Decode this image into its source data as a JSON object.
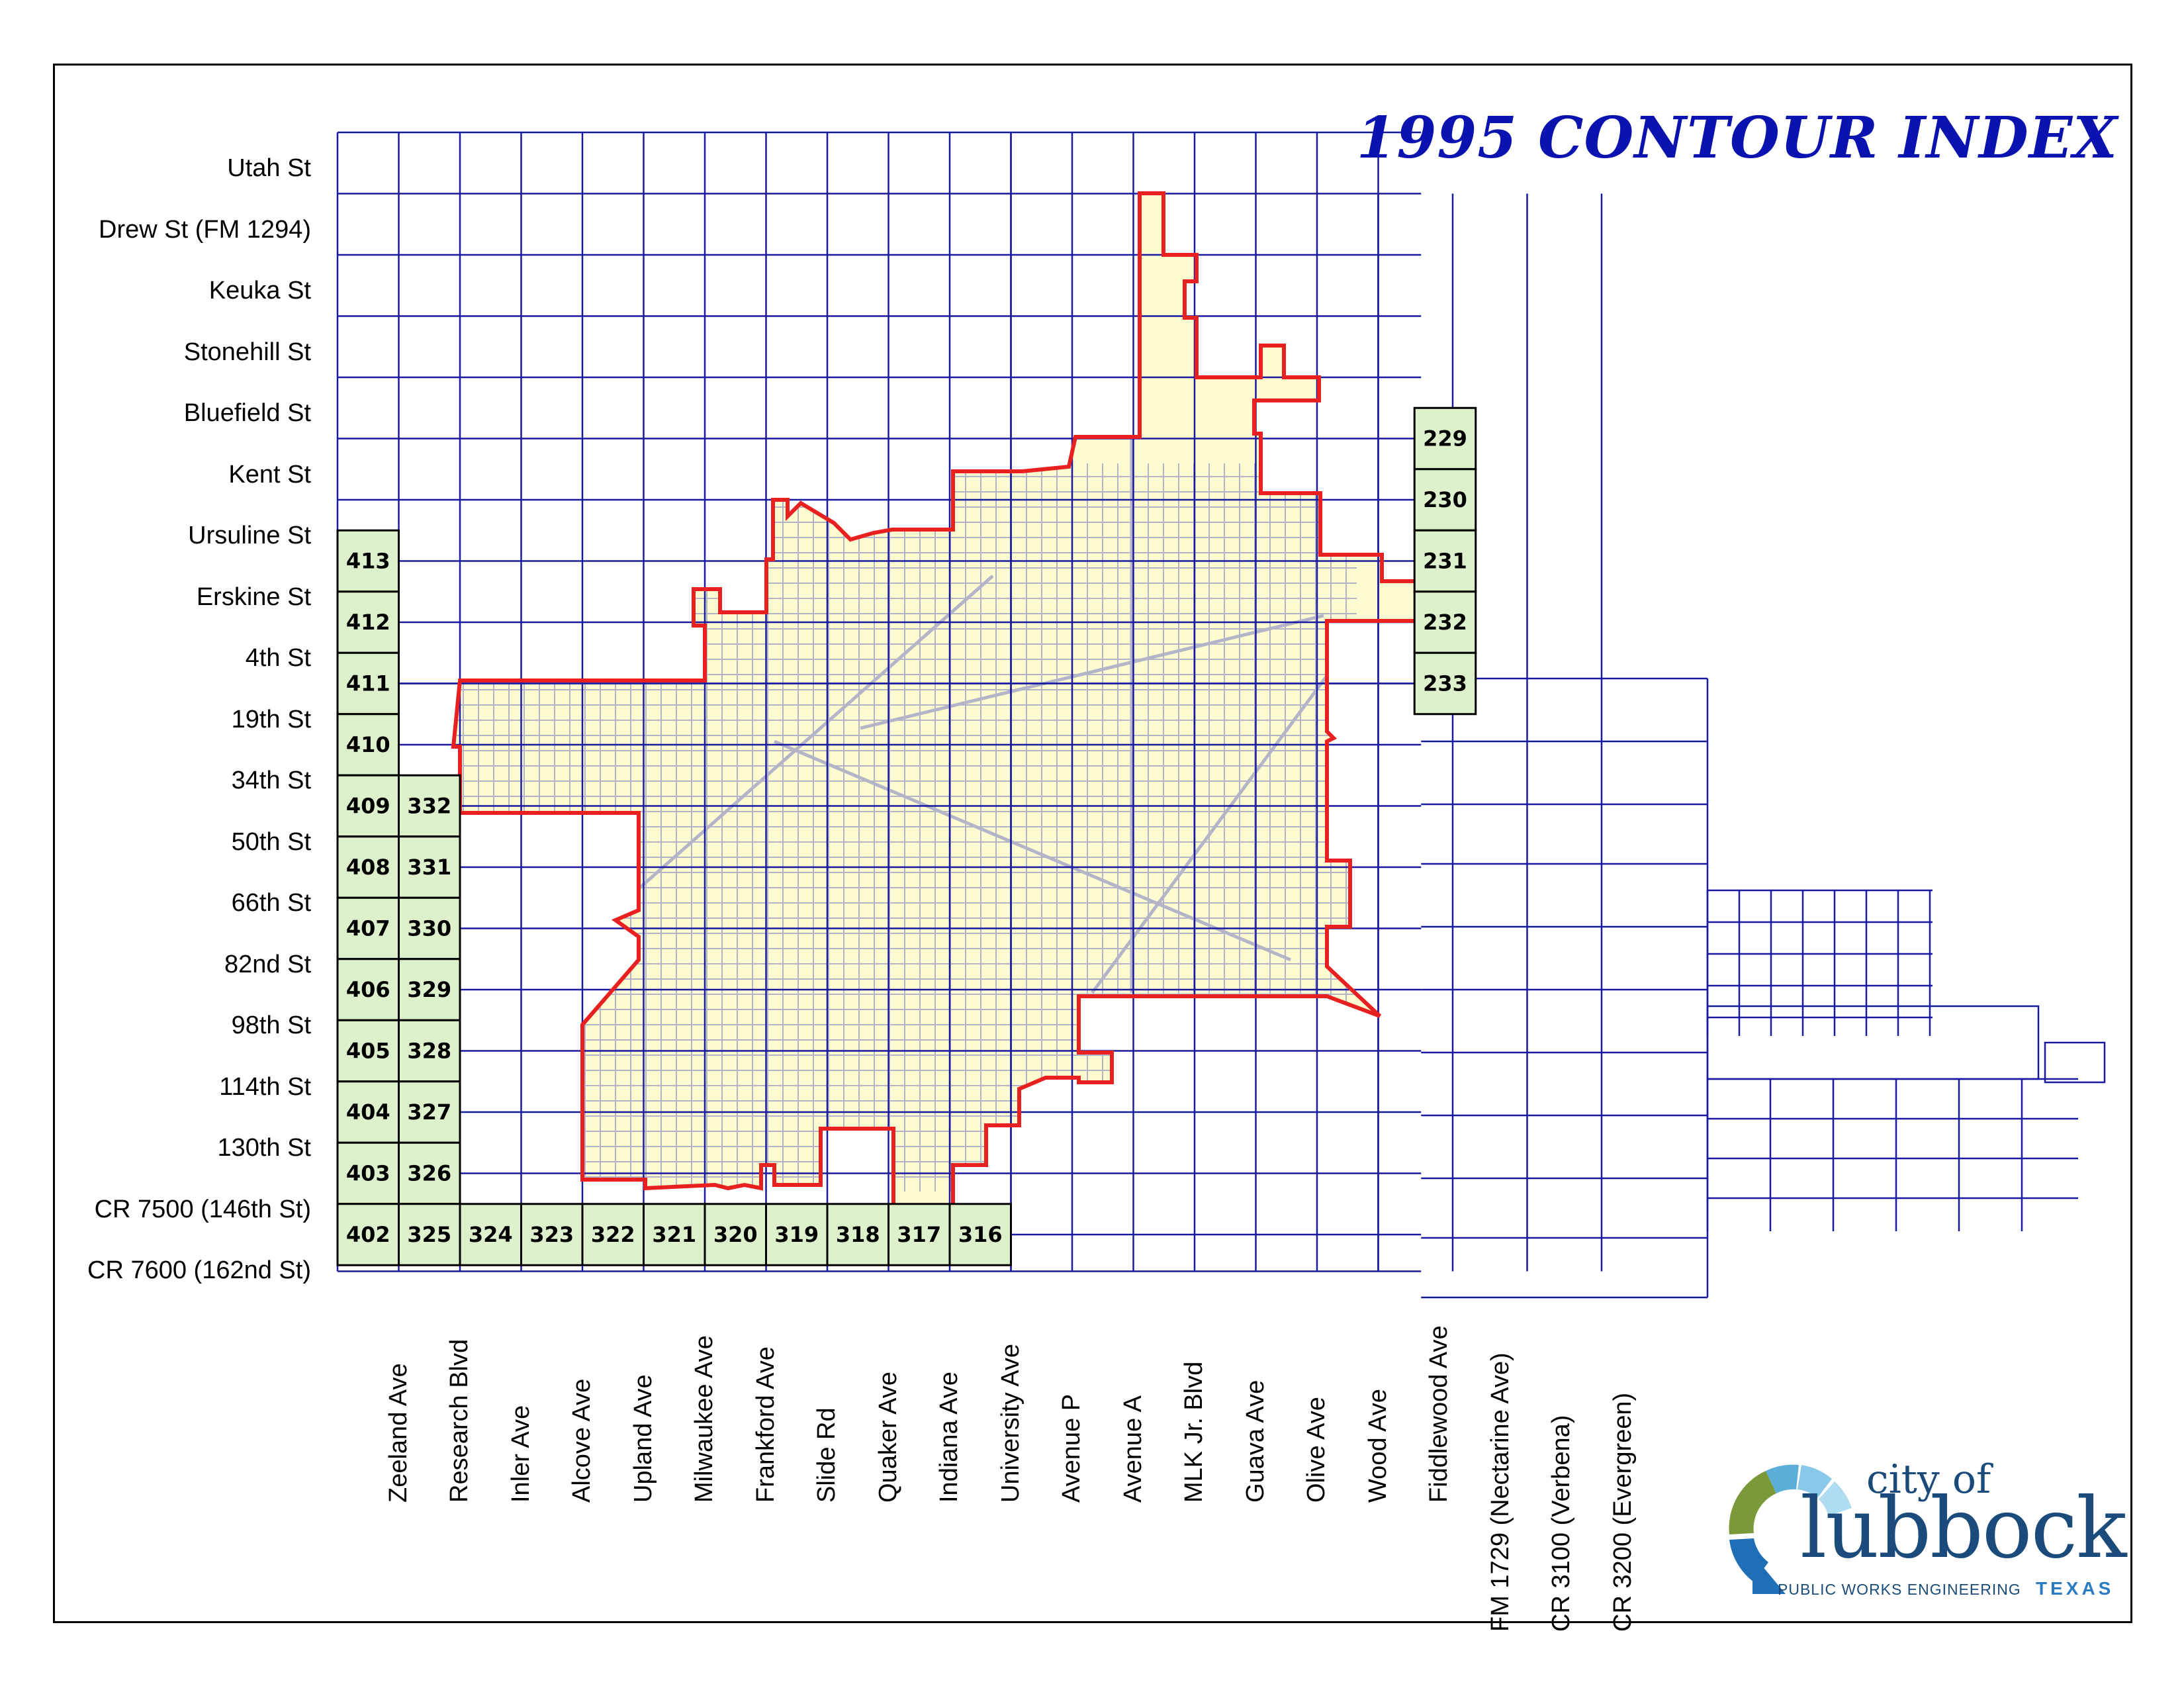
{
  "title": "1995 CONTOUR INDEX",
  "colors": {
    "grid": "#1a1aa0",
    "city_limit": "#e82020",
    "city_fill": "#fdfbd0",
    "index_tile": "#ddf0cc",
    "streets": "#b4b4c8",
    "title": "#0a12b0"
  },
  "streets_ns": [
    "Utah St",
    "Drew St (FM 1294)",
    "Keuka St",
    "Stonehill St",
    "Bluefield St",
    "Kent St",
    "Ursuline St",
    "Erskine St",
    "4th St",
    "19th St",
    "34th St",
    "50th St",
    "66th St",
    "82nd St",
    "98th St",
    "114th St",
    "130th St",
    "CR 7500 (146th St)",
    "CR 7600 (162nd St)"
  ],
  "avenues": [
    "Zeeland Ave",
    "Research Blvd",
    "Inler Ave",
    "Alcove Ave",
    "Upland Ave",
    "Milwaukee Ave",
    "Frankford Ave",
    "Slide Rd",
    "Quaker Ave",
    "Indiana Ave",
    "University Ave",
    "Avenue P",
    "Avenue A",
    "MLK Jr. Blvd",
    "Guava Ave",
    "Olive Ave",
    "Wood Ave",
    "Fiddlewood Ave",
    "FM 1729 (Nectarine Ave)",
    "CR 3100 (Verbena)",
    "CR 3200 (Evergreen)"
  ],
  "tiles_column_402_413": [
    "413",
    "412",
    "411",
    "410",
    "409",
    "408",
    "407",
    "406",
    "405",
    "404",
    "403",
    "402"
  ],
  "tiles_column_325_332": [
    "332",
    "331",
    "330",
    "329",
    "328",
    "327",
    "326",
    "325"
  ],
  "tiles_bottom_row": [
    "324",
    "323",
    "322",
    "321",
    "320",
    "319",
    "318",
    "317",
    "316"
  ],
  "tiles_east_column": [
    "229",
    "230",
    "231",
    "232",
    "233"
  ],
  "logo": {
    "city_of": "city of",
    "name": "lubbock",
    "department": "PUBLIC WORKS ENGINEERING",
    "state": "TEXAS"
  }
}
